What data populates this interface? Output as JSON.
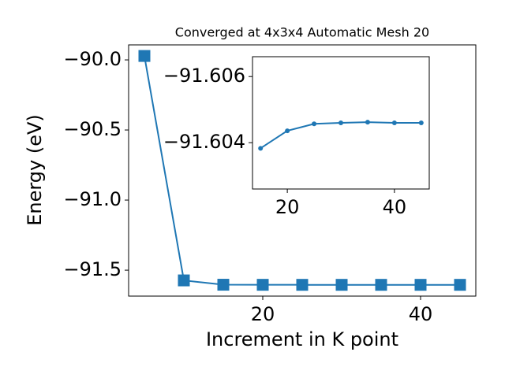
{
  "chart_data": [
    {
      "type": "line",
      "title": "Converged at 4x3x4 Automatic Mesh 20",
      "xlabel": "Increment in K point",
      "ylabel": "Energy (eV)",
      "x": [
        5,
        10,
        15,
        20,
        25,
        30,
        35,
        40,
        45
      ],
      "series": [
        {
          "color": "#1f77b4",
          "marker": "square",
          "values": [
            -89.972,
            -91.573,
            -91.6038,
            -91.6044,
            -91.6046,
            -91.6046,
            -91.6046,
            -91.6046,
            -91.6046
          ]
        }
      ],
      "xlim": [
        3,
        47
      ],
      "ylim": [
        -91.685,
        -89.893
      ],
      "xticks": [
        20,
        40
      ],
      "yticks": [
        {
          "value": -91.5,
          "label": "−91.5"
        },
        {
          "value": -91.0,
          "label": "−91.0"
        },
        {
          "value": -90.5,
          "label": "−90.5"
        },
        {
          "value": -90.0,
          "label": "−90.0"
        }
      ]
    },
    {
      "type": "line",
      "x": [
        15,
        20,
        25,
        30,
        35,
        40,
        45
      ],
      "series": [
        {
          "color": "#1f77b4",
          "marker": "circle",
          "values": [
            -91.60383,
            -91.60436,
            -91.60457,
            -91.6046,
            -91.60462,
            -91.6046,
            -91.6046
          ]
        }
      ],
      "xlim": [
        13.5,
        46.5
      ],
      "ylim": [
        -91.6026,
        -91.6066
      ],
      "xticks": [
        20,
        40
      ],
      "yticks": [
        {
          "value": -91.604,
          "label": "−91.604"
        },
        {
          "value": -91.606,
          "label": "−91.606"
        }
      ]
    }
  ]
}
